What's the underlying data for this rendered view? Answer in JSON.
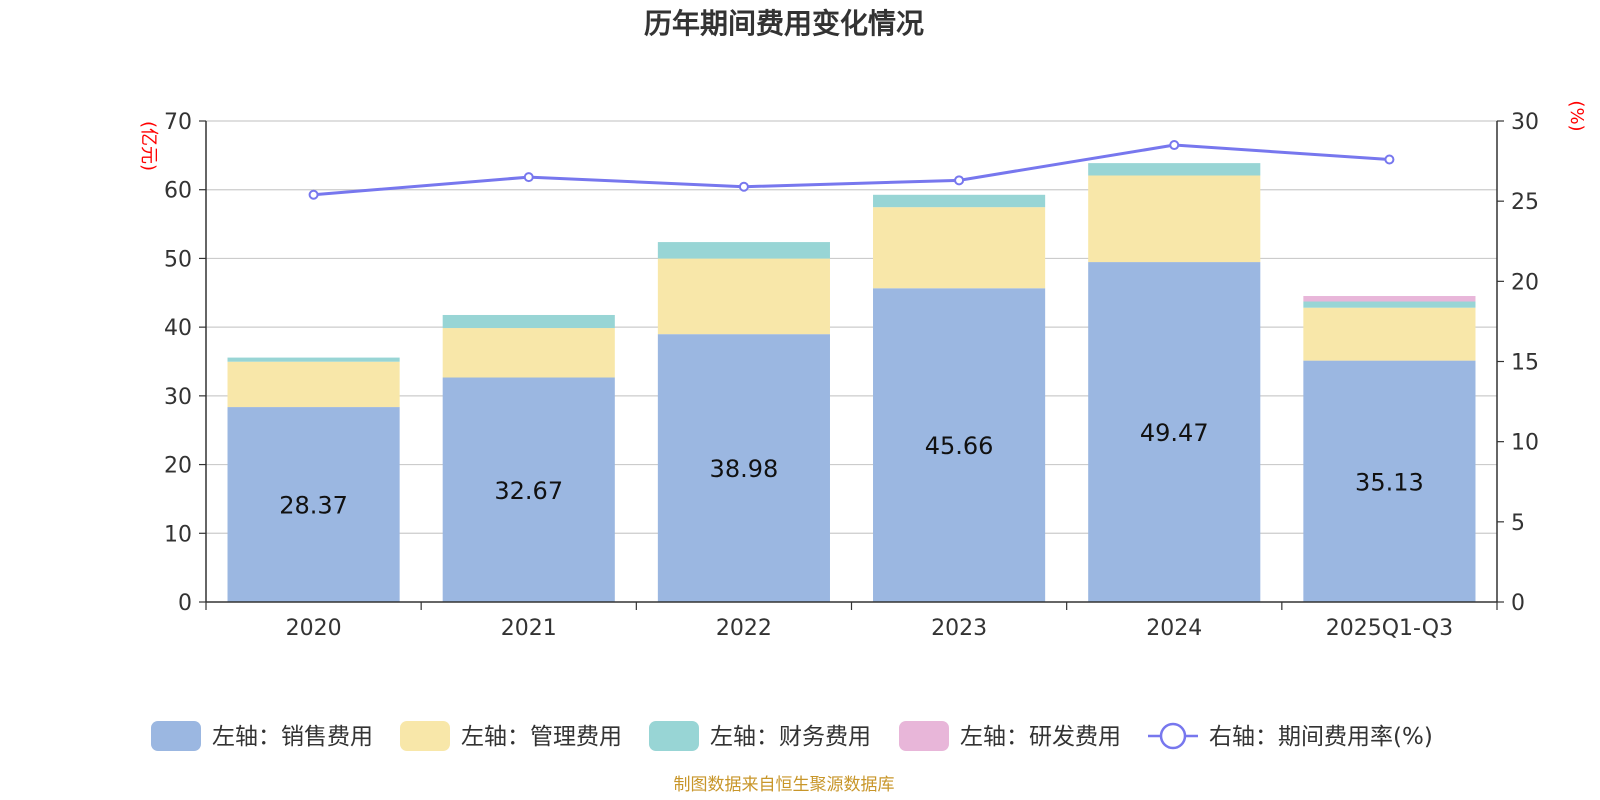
{
  "chart_data": {
    "type": "bar",
    "title": "历年期间费用变化情况",
    "categories": [
      "2020",
      "2021",
      "2022",
      "2023",
      "2024",
      "2025Q1-Q3"
    ],
    "left_axis": {
      "unit_label": "(亿元)",
      "min": 0,
      "max": 70,
      "ticks": [
        "0",
        "10",
        "20",
        "30",
        "40",
        "50",
        "60",
        "70"
      ]
    },
    "right_axis": {
      "unit_label": "(%)",
      "min": 0,
      "max": 30,
      "ticks": [
        "0",
        "5",
        "10",
        "15",
        "20",
        "25",
        "30"
      ]
    },
    "grid": true,
    "series": [
      {
        "name": "左轴：销售费用",
        "type": "bar",
        "axis": "left",
        "color": "#9bb7e1",
        "values": [
          28.37,
          32.67,
          38.98,
          45.66,
          49.47,
          35.13
        ],
        "labels": [
          "28.37",
          "32.67",
          "38.98",
          "45.66",
          "49.47",
          "35.13"
        ]
      },
      {
        "name": "左轴：管理费用",
        "type": "bar",
        "axis": "left",
        "color": "#f8e7a9",
        "values": [
          6.6,
          7.2,
          11.0,
          11.8,
          12.6,
          7.7
        ]
      },
      {
        "name": "左轴：财务费用",
        "type": "bar",
        "axis": "left",
        "color": "#98d5d5",
        "values": [
          0.6,
          1.9,
          2.4,
          1.8,
          1.8,
          0.9
        ]
      },
      {
        "name": "左轴：研发费用",
        "type": "bar",
        "axis": "left",
        "color": "#e8b6d9",
        "values": [
          0,
          0,
          0,
          0,
          0,
          0.8
        ]
      },
      {
        "name": "右轴：期间费用率(%)",
        "type": "line",
        "axis": "right",
        "color": "#7777ee",
        "values": [
          25.4,
          26.5,
          25.9,
          26.3,
          28.5,
          27.6
        ]
      }
    ],
    "legend_position": "bottom"
  },
  "source": "制图数据来自恒生聚源数据库"
}
